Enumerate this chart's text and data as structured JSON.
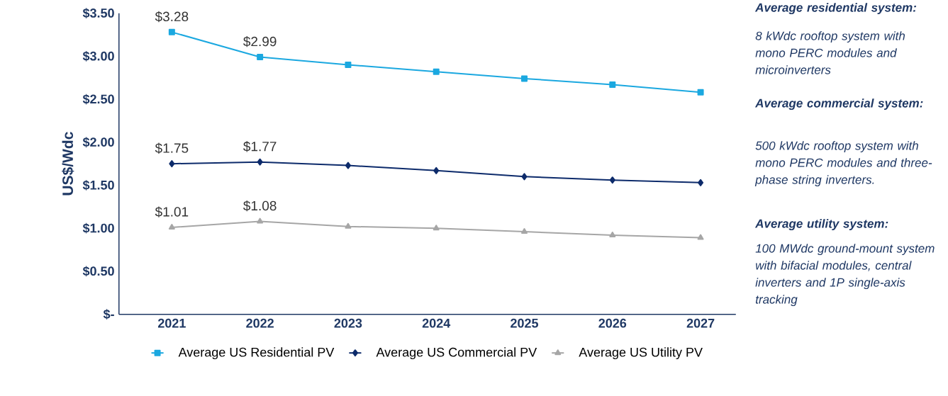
{
  "chart_data": {
    "type": "line",
    "ylabel": "US$/Wdc",
    "categories": [
      "2021",
      "2022",
      "2023",
      "2024",
      "2025",
      "2026",
      "2027"
    ],
    "series": [
      {
        "name": "Average US Residential PV",
        "color": "#1ba8e0",
        "marker": "square",
        "values": [
          3.28,
          2.99,
          2.9,
          2.82,
          2.74,
          2.67,
          2.58
        ],
        "value_labels": [
          "$3.28",
          "$2.99",
          null,
          null,
          null,
          null,
          null
        ]
      },
      {
        "name": "Average US Commercial PV",
        "color": "#0d2b6b",
        "marker": "diamond",
        "values": [
          1.75,
          1.77,
          1.73,
          1.67,
          1.6,
          1.56,
          1.53
        ],
        "value_labels": [
          "$1.75",
          "$1.77",
          null,
          null,
          null,
          null,
          null
        ]
      },
      {
        "name": "Average US Utility PV",
        "color": "#a6a6a6",
        "marker": "triangle",
        "values": [
          1.01,
          1.08,
          1.02,
          1.0,
          0.96,
          0.92,
          0.89
        ],
        "value_labels": [
          "$1.01",
          "$1.08",
          null,
          null,
          null,
          null,
          null
        ]
      }
    ],
    "ylim": [
      0,
      3.5
    ],
    "yticks": [
      {
        "value": 0,
        "label": "$-"
      },
      {
        "value": 0.5,
        "label": "$0.50"
      },
      {
        "value": 1,
        "label": "$1.00"
      },
      {
        "value": 1.5,
        "label": "$1.50"
      },
      {
        "value": 2,
        "label": "$2.00"
      },
      {
        "value": 2.5,
        "label": "$2.50"
      },
      {
        "value": 3,
        "label": "$3.00"
      },
      {
        "value": 3.5,
        "label": "$3.50"
      }
    ],
    "grid": false,
    "legend": "bottom",
    "annotations": [
      "Average residential system:",
      "8 kWdc rooftop system with mono PERC modules and microinverters",
      "Average commercial system:",
      "500 kWdc rooftop system with mono PERC modules and three-phase string inverters.",
      "Average utility system:",
      "100 MWdc ground-mount system with bifacial modules, central inverters and 1P single-axis tracking"
    ]
  }
}
